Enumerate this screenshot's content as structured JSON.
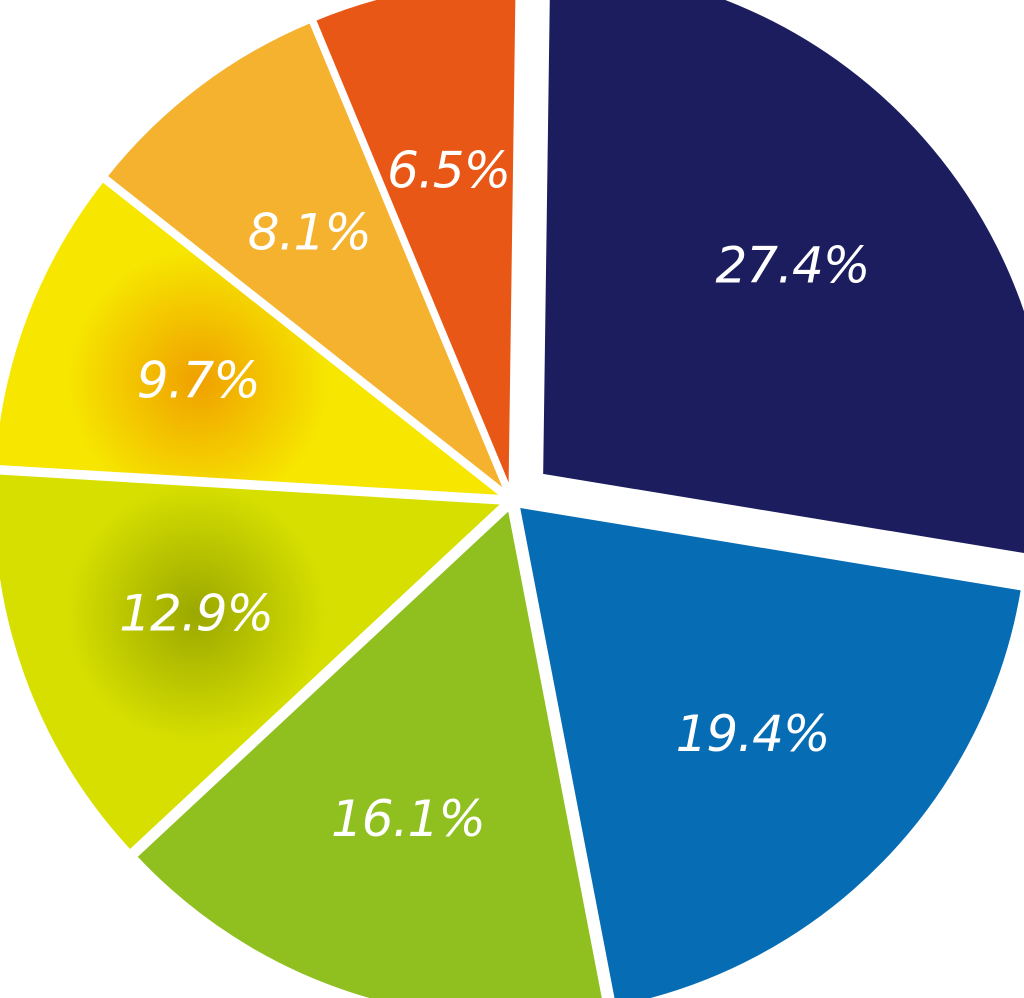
{
  "chart_data": {
    "type": "pie",
    "title": "",
    "legend": "none",
    "slices": [
      {
        "value": 27.4,
        "label": "27.4%",
        "color": "#1b1d5e"
      },
      {
        "value": 19.4,
        "label": "19.4%",
        "color": "#066cb4"
      },
      {
        "value": 16.1,
        "label": "16.1%",
        "color": "#8fc020"
      },
      {
        "value": 12.9,
        "label": "12.9%",
        "color": "#d7df00",
        "glow": "#9aa800"
      },
      {
        "value": 9.7,
        "label": "9.7%",
        "color": "#f6e600",
        "glow": "#f0a000"
      },
      {
        "value": 8.1,
        "label": "8.1%",
        "color": "#f5b22f"
      },
      {
        "value": 6.5,
        "label": "6.5%",
        "color": "#e85716"
      }
    ]
  }
}
